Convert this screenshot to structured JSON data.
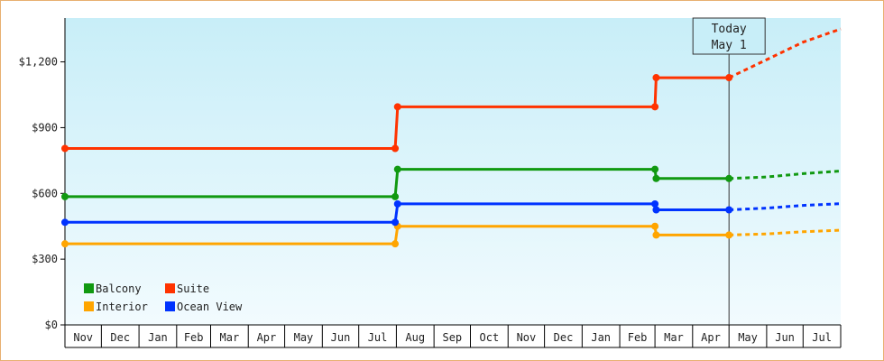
{
  "chart_data": {
    "type": "line",
    "title": "",
    "xlabel": "",
    "ylabel": "",
    "ylim": [
      0,
      1400
    ],
    "y_ticks": [
      {
        "value": 0,
        "label": "$0"
      },
      {
        "value": 300,
        "label": "$300"
      },
      {
        "value": 600,
        "label": "$600"
      },
      {
        "value": 900,
        "label": "$900"
      },
      {
        "value": 1200,
        "label": "$1,200"
      }
    ],
    "x_range": [
      "2022-11-01",
      "2024-08-01"
    ],
    "x_labels": [
      {
        "date": "2022-11-01",
        "label": "Nov"
      },
      {
        "date": "2022-12-01",
        "label": "Dec"
      },
      {
        "date": "2023-01-01",
        "label": "Jan"
      },
      {
        "date": "2023-02-01",
        "label": "Feb"
      },
      {
        "date": "2023-03-01",
        "label": "Mar"
      },
      {
        "date": "2023-04-01",
        "label": "Apr"
      },
      {
        "date": "2023-05-01",
        "label": "May"
      },
      {
        "date": "2023-06-01",
        "label": "Jun"
      },
      {
        "date": "2023-07-01",
        "label": "Jul"
      },
      {
        "date": "2023-08-01",
        "label": "Aug"
      },
      {
        "date": "2023-09-01",
        "label": "Sep"
      },
      {
        "date": "2023-10-01",
        "label": "Oct"
      },
      {
        "date": "2023-11-01",
        "label": "Nov"
      },
      {
        "date": "2023-12-01",
        "label": "Dec"
      },
      {
        "date": "2024-01-01",
        "label": "Jan"
      },
      {
        "date": "2024-02-01",
        "label": "Feb"
      },
      {
        "date": "2024-03-01",
        "label": "Mar"
      },
      {
        "date": "2024-04-01",
        "label": "Apr"
      },
      {
        "date": "2024-05-01",
        "label": "May"
      },
      {
        "date": "2024-06-01",
        "label": "Jun"
      },
      {
        "date": "2024-07-01",
        "label": "Jul"
      }
    ],
    "today": {
      "date": "2024-05-01",
      "line1": "Today",
      "line2": "May 1"
    },
    "legend": {
      "placement": "bottom-left",
      "columns": 2
    },
    "series": [
      {
        "name": "Balcony",
        "color": "#119911",
        "points": [
          {
            "date": "2022-11-01",
            "value": 585
          },
          {
            "date": "2023-07-31",
            "value": 585
          },
          {
            "date": "2023-08-02",
            "value": 710
          },
          {
            "date": "2024-03-01",
            "value": 710
          },
          {
            "date": "2024-03-02",
            "value": 668
          },
          {
            "date": "2024-05-01",
            "value": 668
          }
        ],
        "forecast": [
          {
            "date": "2024-05-01",
            "value": 668
          },
          {
            "date": "2024-06-01",
            "value": 675
          },
          {
            "date": "2024-07-01",
            "value": 690
          },
          {
            "date": "2024-08-01",
            "value": 702
          }
        ]
      },
      {
        "name": "Suite",
        "color": "#ff3300",
        "points": [
          {
            "date": "2022-11-01",
            "value": 805
          },
          {
            "date": "2023-07-31",
            "value": 805
          },
          {
            "date": "2023-08-02",
            "value": 995
          },
          {
            "date": "2024-03-01",
            "value": 995
          },
          {
            "date": "2024-03-02",
            "value": 1128
          },
          {
            "date": "2024-05-01",
            "value": 1128
          }
        ],
        "forecast": [
          {
            "date": "2024-05-01",
            "value": 1128
          },
          {
            "date": "2024-06-01",
            "value": 1210
          },
          {
            "date": "2024-07-01",
            "value": 1290
          },
          {
            "date": "2024-08-01",
            "value": 1350
          }
        ]
      },
      {
        "name": "Interior",
        "color": "#ffa500",
        "points": [
          {
            "date": "2022-11-01",
            "value": 370
          },
          {
            "date": "2023-07-31",
            "value": 370
          },
          {
            "date": "2023-08-02",
            "value": 450
          },
          {
            "date": "2024-03-01",
            "value": 450
          },
          {
            "date": "2024-03-02",
            "value": 410
          },
          {
            "date": "2024-05-01",
            "value": 410
          }
        ],
        "forecast": [
          {
            "date": "2024-05-01",
            "value": 410
          },
          {
            "date": "2024-06-01",
            "value": 415
          },
          {
            "date": "2024-07-01",
            "value": 425
          },
          {
            "date": "2024-08-01",
            "value": 432
          }
        ]
      },
      {
        "name": "Ocean View",
        "color": "#0033ff",
        "points": [
          {
            "date": "2022-11-01",
            "value": 468
          },
          {
            "date": "2023-07-31",
            "value": 468
          },
          {
            "date": "2023-08-02",
            "value": 552
          },
          {
            "date": "2024-03-01",
            "value": 552
          },
          {
            "date": "2024-03-02",
            "value": 525
          },
          {
            "date": "2024-05-01",
            "value": 525
          }
        ],
        "forecast": [
          {
            "date": "2024-05-01",
            "value": 525
          },
          {
            "date": "2024-06-01",
            "value": 533
          },
          {
            "date": "2024-07-01",
            "value": 545
          },
          {
            "date": "2024-08-01",
            "value": 553
          }
        ]
      }
    ],
    "colors": {
      "background_top": "#c8eef8",
      "background_bottom": "#f2fbfe",
      "border": "#e8b070",
      "axis": "#000000"
    }
  }
}
